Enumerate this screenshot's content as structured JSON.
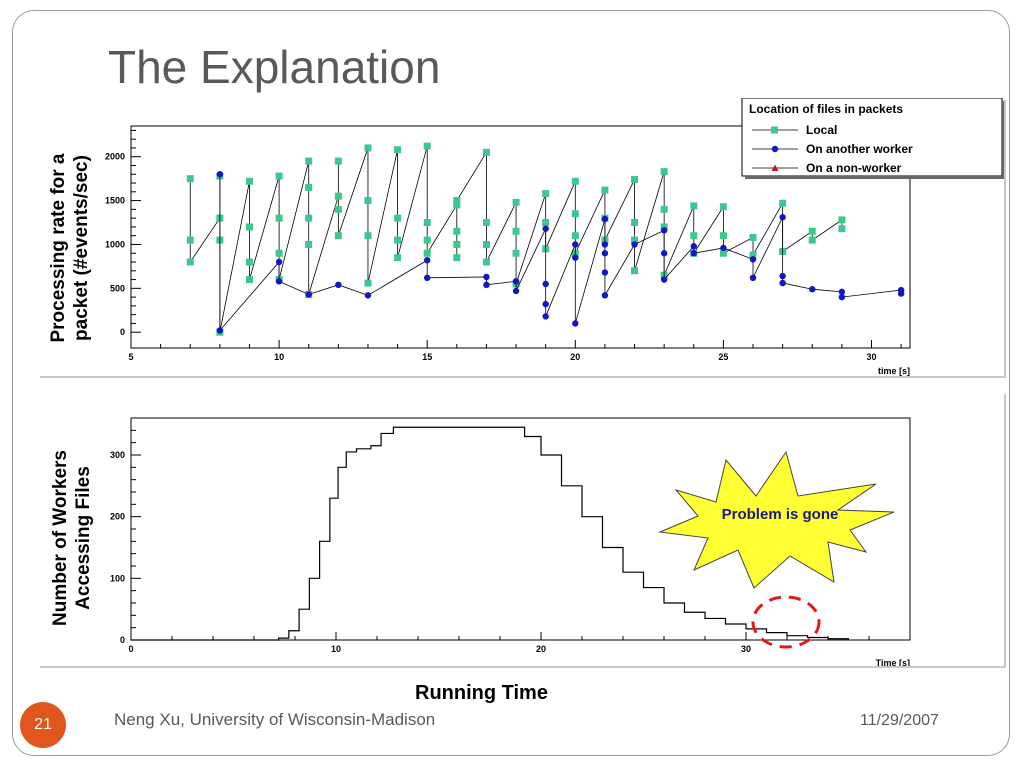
{
  "slide": {
    "title": "The Explanation",
    "footer": "Neng Xu, University of Wisconsin-Madison",
    "date": "11/29/2007",
    "number": "21",
    "x_caption": "Running Time"
  },
  "chart_data": [
    {
      "type": "scatter",
      "ylabel": "Processing rate for a packet (#events/sec)",
      "xlabel": "time [s]",
      "xlim": [
        5,
        31.3
      ],
      "ylim": [
        -180,
        2350
      ],
      "x_ticks": [
        5,
        10,
        15,
        20,
        25,
        30
      ],
      "y_ticks": [
        0,
        500,
        1000,
        1500,
        2000
      ],
      "grid": false,
      "legend": {
        "title": "Location of files in packets",
        "placement": "top-right",
        "entries": [
          "Local",
          "On another worker",
          "On a non-worker"
        ]
      },
      "series": [
        {
          "name": "Local",
          "color": "#3cc88c",
          "marker": "square",
          "segments": [
            [
              [
                7,
                1750
              ],
              [
                7,
                1050
              ],
              [
                7,
                800
              ],
              [
                8,
                1300
              ],
              [
                8,
                1050
              ],
              [
                8,
                1780
              ],
              [
                8,
                0
              ],
              [
                9,
                1720
              ],
              [
                9,
                1200
              ],
              [
                9,
                800
              ],
              [
                9,
                600
              ],
              [
                10,
                1780
              ],
              [
                10,
                1300
              ],
              [
                10,
                900
              ],
              [
                10,
                600
              ],
              [
                11,
                1950
              ],
              [
                11,
                1650
              ],
              [
                11,
                1300
              ],
              [
                11,
                1000
              ],
              [
                11,
                430
              ],
              [
                12,
                1550
              ],
              [
                12,
                1950
              ],
              [
                12,
                1400
              ],
              [
                12,
                1100
              ],
              [
                13,
                2100
              ],
              [
                13,
                1500
              ],
              [
                13,
                1100
              ],
              [
                13,
                560
              ],
              [
                14,
                2080
              ],
              [
                14,
                1300
              ],
              [
                14,
                1050
              ],
              [
                14,
                850
              ],
              [
                15,
                2120
              ],
              [
                15,
                1250
              ],
              [
                15,
                1050
              ],
              [
                15,
                900
              ],
              [
                16,
                1450
              ],
              [
                16,
                1150
              ],
              [
                16,
                1000
              ],
              [
                16,
                850
              ]
            ],
            [
              [
                16,
                1500
              ],
              [
                17,
                2050
              ],
              [
                17,
                1250
              ],
              [
                17,
                1000
              ],
              [
                17,
                800
              ],
              [
                18,
                1480
              ],
              [
                18,
                1150
              ],
              [
                18,
                900
              ],
              [
                18,
                550
              ],
              [
                19,
                1580
              ],
              [
                19,
                1250
              ],
              [
                19,
                950
              ],
              [
                20,
                1720
              ],
              [
                20,
                1350
              ],
              [
                20,
                1100
              ],
              [
                20,
                900
              ],
              [
                21,
                1620
              ],
              [
                21,
                1300
              ],
              [
                21,
                1050
              ],
              [
                22,
                1740
              ],
              [
                22,
                1250
              ],
              [
                22,
                1050
              ],
              [
                22,
                700
              ],
              [
                23,
                1830
              ],
              [
                23,
                1400
              ],
              [
                23,
                1200
              ],
              [
                23,
                650
              ],
              [
                24,
                1440
              ],
              [
                24,
                1100
              ],
              [
                24,
                900
              ],
              [
                25,
                1430
              ],
              [
                25,
                1100
              ],
              [
                25,
                900
              ],
              [
                26,
                1080
              ],
              [
                26,
                880
              ],
              [
                27,
                1470
              ],
              [
                27,
                920
              ],
              [
                28,
                1150
              ],
              [
                28,
                1050
              ],
              [
                29,
                1280
              ],
              [
                29,
                1180
              ]
            ]
          ]
        },
        {
          "name": "On another worker",
          "color": "#1414c8",
          "marker": "circle",
          "segments": [
            [
              [
                8,
                1800
              ],
              [
                8,
                20
              ],
              [
                10,
                800
              ],
              [
                10,
                580
              ],
              [
                11,
                430
              ],
              [
                12,
                540
              ],
              [
                13,
                420
              ],
              [
                15,
                820
              ],
              [
                15,
                620
              ],
              [
                17,
                630
              ],
              [
                17,
                540
              ],
              [
                18,
                580
              ],
              [
                18,
                470
              ],
              [
                19,
                1180
              ],
              [
                19,
                550
              ],
              [
                19,
                320
              ],
              [
                19,
                180
              ],
              [
                20,
                1000
              ],
              [
                20,
                850
              ],
              [
                20,
                100
              ],
              [
                21,
                1290
              ],
              [
                21,
                1000
              ],
              [
                21,
                900
              ],
              [
                21,
                680
              ],
              [
                21,
                420
              ],
              [
                22,
                1000
              ],
              [
                23,
                1160
              ],
              [
                23,
                900
              ],
              [
                23,
                600
              ],
              [
                24,
                980
              ],
              [
                24,
                900
              ],
              [
                25,
                960
              ],
              [
                26,
                830
              ],
              [
                26,
                620
              ],
              [
                27,
                1310
              ],
              [
                27,
                640
              ],
              [
                27,
                560
              ],
              [
                28,
                490
              ],
              [
                29,
                460
              ],
              [
                29,
                400
              ],
              [
                31,
                480
              ],
              [
                31,
                440
              ]
            ]
          ]
        },
        {
          "name": "On a non-worker",
          "color": "#c81414",
          "marker": "triangle",
          "segments": []
        }
      ]
    },
    {
      "type": "line",
      "ylabel": "Number of Workers Accessing Files",
      "xlabel": "Time [s]",
      "xlim": [
        0,
        38
      ],
      "ylim": [
        0,
        360
      ],
      "x_ticks": [
        0,
        10,
        20,
        30
      ],
      "y_ticks": [
        0,
        100,
        200,
        300
      ],
      "grid": false,
      "series": [
        {
          "name": "",
          "color": "#000000",
          "points": [
            [
              0,
              0
            ],
            [
              6.5,
              0
            ],
            [
              7.2,
              3
            ],
            [
              7.7,
              15
            ],
            [
              8.2,
              50
            ],
            [
              8.7,
              100
            ],
            [
              9.2,
              160
            ],
            [
              9.7,
              230
            ],
            [
              10.1,
              280
            ],
            [
              10.5,
              305
            ],
            [
              11,
              310
            ],
            [
              11.7,
              315
            ],
            [
              12.2,
              335
            ],
            [
              12.8,
              345
            ],
            [
              13.5,
              345
            ],
            [
              17,
              345
            ],
            [
              18.3,
              345
            ],
            [
              19.2,
              330
            ],
            [
              20,
              300
            ],
            [
              21,
              250
            ],
            [
              22,
              200
            ],
            [
              23,
              150
            ],
            [
              24,
              110
            ],
            [
              25,
              85
            ],
            [
              26,
              60
            ],
            [
              27,
              45
            ],
            [
              28,
              35
            ],
            [
              29,
              26
            ],
            [
              30,
              18
            ],
            [
              31,
              12
            ],
            [
              32,
              7
            ],
            [
              33,
              4
            ],
            [
              34,
              2
            ],
            [
              35,
              0
            ]
          ]
        }
      ],
      "annotations": [
        {
          "text": "Problem is gone",
          "shape": "starburst",
          "color": "#ffff33"
        },
        {
          "text": "",
          "shape": "dashed-ellipse",
          "color": "#e21a1a"
        }
      ]
    }
  ]
}
